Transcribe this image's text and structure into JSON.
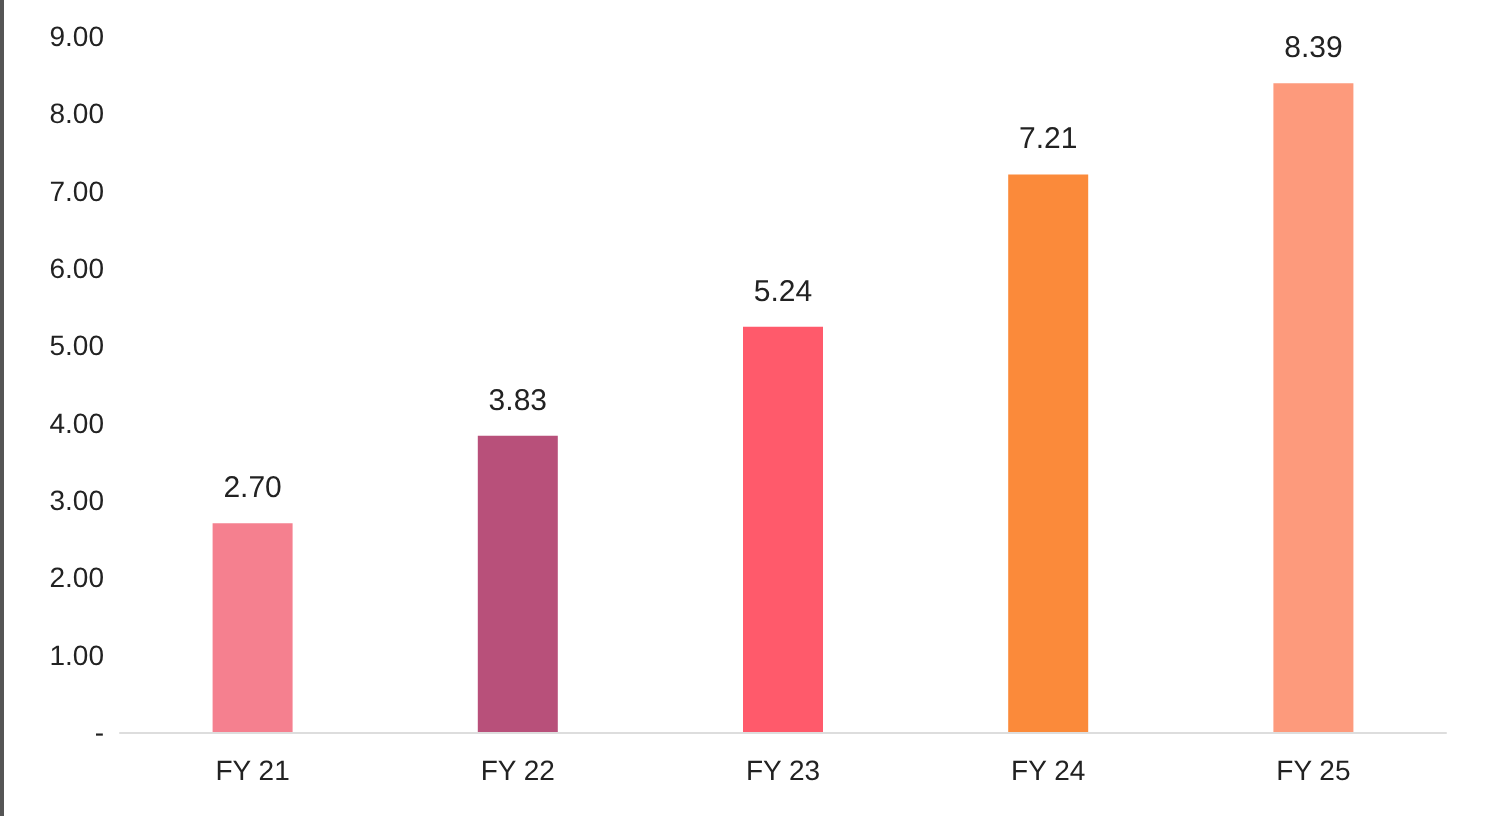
{
  "chart_data": {
    "type": "bar",
    "categories": [
      "FY 21",
      "FY 22",
      "FY 23",
      "FY 24",
      "FY 25"
    ],
    "values": [
      2.7,
      3.83,
      5.24,
      7.21,
      8.39
    ],
    "value_labels": [
      "2.70",
      "3.83",
      "5.24",
      "7.21",
      "8.39"
    ],
    "colors": [
      "#f5808f",
      "#b8507a",
      "#ff5a6b",
      "#fb8a3a",
      "#fd9a7c"
    ],
    "ylim": [
      0,
      9
    ],
    "yticks": [
      {
        "value": 0,
        "label": "-"
      },
      {
        "value": 1,
        "label": "1.00"
      },
      {
        "value": 2,
        "label": "2.00"
      },
      {
        "value": 3,
        "label": "3.00"
      },
      {
        "value": 4,
        "label": "4.00"
      },
      {
        "value": 5,
        "label": "5.00"
      },
      {
        "value": 6,
        "label": "6.00"
      },
      {
        "value": 7,
        "label": "7.00"
      },
      {
        "value": 8,
        "label": "8.00"
      },
      {
        "value": 9,
        "label": "9.00"
      }
    ],
    "grid": false
  }
}
